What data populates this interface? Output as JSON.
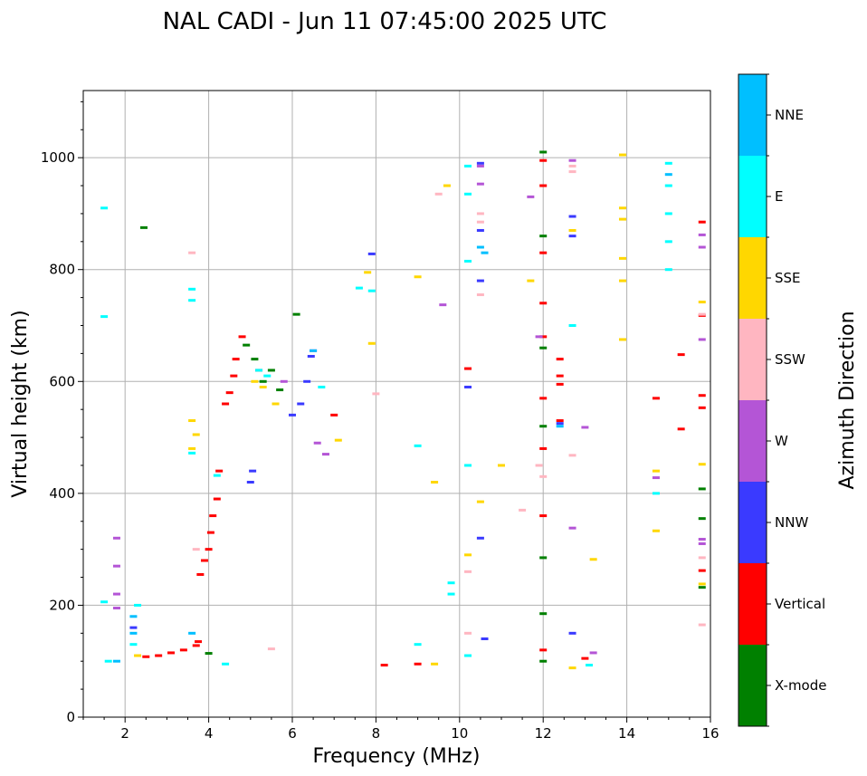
{
  "chart_data": {
    "type": "scatter",
    "title": "NAL CADI - Jun 11 07:45:00 2025 UTC",
    "xlabel": "Frequency (MHz)",
    "ylabel": "Virtual height (km)",
    "xlim": [
      1,
      16
    ],
    "ylim": [
      0,
      1120
    ],
    "xticks": [
      2,
      4,
      6,
      8,
      10,
      12,
      14,
      16
    ],
    "yticks": [
      0,
      200,
      400,
      600,
      800,
      1000
    ],
    "grid": true,
    "colorbar": {
      "label": "Azimuth Direction",
      "categories": [
        {
          "name": "X-mode",
          "color": "#008000"
        },
        {
          "name": "Vertical",
          "color": "#ff0000"
        },
        {
          "name": "NNW",
          "color": "#3a3aff"
        },
        {
          "name": "W",
          "color": "#b455d6"
        },
        {
          "name": "SSW",
          "color": "#ffb6c1"
        },
        {
          "name": "SSE",
          "color": "#ffd700"
        },
        {
          "name": "E",
          "color": "#00ffff"
        },
        {
          "name": "NNE",
          "color": "#00bfff"
        }
      ]
    },
    "series": [
      {
        "name": "X-mode",
        "points": [
          [
            2.45,
            875
          ],
          [
            4.0,
            114
          ],
          [
            4.9,
            665
          ],
          [
            5.1,
            640
          ],
          [
            5.3,
            600
          ],
          [
            5.5,
            620
          ],
          [
            5.7,
            585
          ],
          [
            6.1,
            720
          ],
          [
            12.0,
            1010
          ],
          [
            12.0,
            860
          ],
          [
            12.0,
            660
          ],
          [
            12.0,
            520
          ],
          [
            12.0,
            285
          ],
          [
            12.0,
            185
          ],
          [
            12.0,
            100
          ],
          [
            15.8,
            408
          ],
          [
            15.8,
            355
          ],
          [
            15.8,
            232
          ]
        ]
      },
      {
        "name": "Vertical",
        "points": [
          [
            2.5,
            108
          ],
          [
            2.8,
            110
          ],
          [
            3.1,
            115
          ],
          [
            3.4,
            120
          ],
          [
            3.7,
            128
          ],
          [
            3.75,
            135
          ],
          [
            3.8,
            255
          ],
          [
            3.9,
            280
          ],
          [
            4.0,
            300
          ],
          [
            4.05,
            330
          ],
          [
            4.1,
            360
          ],
          [
            4.2,
            390
          ],
          [
            4.25,
            440
          ],
          [
            4.4,
            560
          ],
          [
            4.5,
            580
          ],
          [
            4.6,
            610
          ],
          [
            4.65,
            640
          ],
          [
            4.8,
            680
          ],
          [
            5.2,
            620
          ],
          [
            7.0,
            540
          ],
          [
            8.2,
            93
          ],
          [
            9.0,
            95
          ],
          [
            10.2,
            623
          ],
          [
            12.0,
            995
          ],
          [
            12.0,
            950
          ],
          [
            12.0,
            830
          ],
          [
            12.0,
            740
          ],
          [
            12.0,
            680
          ],
          [
            12.0,
            570
          ],
          [
            12.0,
            480
          ],
          [
            12.0,
            360
          ],
          [
            12.0,
            120
          ],
          [
            12.4,
            640
          ],
          [
            12.4,
            610
          ],
          [
            12.4,
            595
          ],
          [
            12.4,
            530
          ],
          [
            13.0,
            105
          ],
          [
            14.7,
            570
          ],
          [
            15.3,
            648
          ],
          [
            15.3,
            515
          ],
          [
            15.8,
            885
          ],
          [
            15.8,
            718
          ],
          [
            15.8,
            575
          ],
          [
            15.8,
            553
          ],
          [
            15.8,
            262
          ]
        ]
      },
      {
        "name": "NNW",
        "points": [
          [
            2.2,
            160
          ],
          [
            5.0,
            420
          ],
          [
            5.05,
            440
          ],
          [
            6.0,
            540
          ],
          [
            6.2,
            560
          ],
          [
            6.35,
            600
          ],
          [
            6.45,
            645
          ],
          [
            7.9,
            828
          ],
          [
            10.2,
            590
          ],
          [
            10.5,
            990
          ],
          [
            10.5,
            870
          ],
          [
            10.5,
            780
          ],
          [
            10.5,
            320
          ],
          [
            10.6,
            140
          ],
          [
            12.4,
            525
          ],
          [
            12.7,
            895
          ],
          [
            12.7,
            860
          ],
          [
            12.7,
            150
          ]
        ]
      },
      {
        "name": "W",
        "points": [
          [
            1.8,
            320
          ],
          [
            1.8,
            270
          ],
          [
            1.8,
            220
          ],
          [
            1.8,
            195
          ],
          [
            5.8,
            600
          ],
          [
            6.5,
            655
          ],
          [
            6.6,
            490
          ],
          [
            6.8,
            470
          ],
          [
            9.6,
            737
          ],
          [
            10.5,
            985
          ],
          [
            10.5,
            953
          ],
          [
            11.7,
            930
          ],
          [
            11.9,
            680
          ],
          [
            12.7,
            995
          ],
          [
            12.7,
            338
          ],
          [
            13.0,
            518
          ],
          [
            13.2,
            115
          ],
          [
            14.7,
            428
          ],
          [
            15.8,
            862
          ],
          [
            15.8,
            840
          ],
          [
            15.8,
            675
          ],
          [
            15.8,
            318
          ],
          [
            15.8,
            310
          ]
        ]
      },
      {
        "name": "SSW",
        "points": [
          [
            3.6,
            830
          ],
          [
            3.7,
            300
          ],
          [
            5.5,
            122
          ],
          [
            8.0,
            578
          ],
          [
            9.5,
            935
          ],
          [
            10.2,
            260
          ],
          [
            10.2,
            150
          ],
          [
            10.5,
            900
          ],
          [
            10.5,
            885
          ],
          [
            10.5,
            755
          ],
          [
            11.5,
            370
          ],
          [
            11.9,
            450
          ],
          [
            12.0,
            430
          ],
          [
            12.7,
            985
          ],
          [
            12.7,
            975
          ],
          [
            12.7,
            468
          ],
          [
            15.8,
            720
          ],
          [
            15.8,
            285
          ],
          [
            15.8,
            165
          ]
        ]
      },
      {
        "name": "SSE",
        "points": [
          [
            2.3,
            110
          ],
          [
            3.6,
            530
          ],
          [
            3.6,
            480
          ],
          [
            3.7,
            505
          ],
          [
            5.1,
            600
          ],
          [
            5.3,
            590
          ],
          [
            5.6,
            560
          ],
          [
            7.1,
            495
          ],
          [
            7.8,
            795
          ],
          [
            7.9,
            668
          ],
          [
            9.0,
            787
          ],
          [
            9.4,
            420
          ],
          [
            9.4,
            95
          ],
          [
            9.7,
            950
          ],
          [
            10.2,
            290
          ],
          [
            10.5,
            385
          ],
          [
            11.0,
            450
          ],
          [
            11.7,
            780
          ],
          [
            12.7,
            870
          ],
          [
            12.7,
            88
          ],
          [
            13.2,
            282
          ],
          [
            13.9,
            1005
          ],
          [
            13.9,
            910
          ],
          [
            13.9,
            890
          ],
          [
            13.9,
            820
          ],
          [
            13.9,
            780
          ],
          [
            13.9,
            675
          ],
          [
            14.7,
            440
          ],
          [
            14.7,
            333
          ],
          [
            15.8,
            742
          ],
          [
            15.8,
            452
          ],
          [
            15.8,
            238
          ]
        ]
      },
      {
        "name": "E",
        "points": [
          [
            1.5,
            910
          ],
          [
            1.5,
            716
          ],
          [
            1.5,
            206
          ],
          [
            1.6,
            100
          ],
          [
            2.2,
            130
          ],
          [
            2.3,
            200
          ],
          [
            3.6,
            765
          ],
          [
            3.6,
            745
          ],
          [
            3.6,
            472
          ],
          [
            4.2,
            432
          ],
          [
            4.4,
            95
          ],
          [
            5.2,
            620
          ],
          [
            5.4,
            610
          ],
          [
            6.7,
            590
          ],
          [
            7.6,
            767
          ],
          [
            7.9,
            762
          ],
          [
            9.0,
            485
          ],
          [
            9.0,
            130
          ],
          [
            9.8,
            220
          ],
          [
            9.8,
            240
          ],
          [
            10.2,
            985
          ],
          [
            10.2,
            935
          ],
          [
            10.2,
            815
          ],
          [
            10.2,
            450
          ],
          [
            10.2,
            110
          ],
          [
            12.7,
            700
          ],
          [
            13.1,
            93
          ],
          [
            15.0,
            990
          ],
          [
            15.0,
            950
          ],
          [
            15.0,
            900
          ],
          [
            15.0,
            850
          ],
          [
            15.0,
            800
          ],
          [
            14.7,
            400
          ]
        ]
      },
      {
        "name": "NNE",
        "points": [
          [
            1.8,
            100
          ],
          [
            2.2,
            150
          ],
          [
            2.2,
            180
          ],
          [
            3.6,
            150
          ],
          [
            6.5,
            655
          ],
          [
            10.5,
            840
          ],
          [
            10.6,
            830
          ],
          [
            12.4,
            520
          ],
          [
            15.0,
            970
          ]
        ]
      }
    ]
  }
}
